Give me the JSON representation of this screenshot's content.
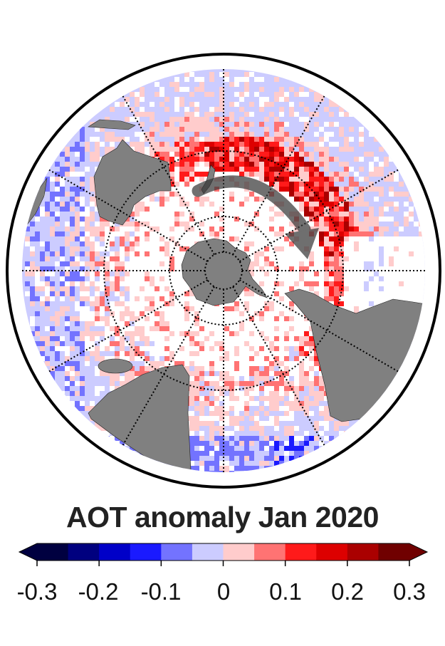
{
  "title": "AOT anomaly Jan 2020",
  "colorbar": {
    "ticks": [
      "-0.3",
      "-0.2",
      "-0.1",
      "0",
      "0.1",
      "0.2",
      "0.3"
    ],
    "tick_values": [
      -0.3,
      -0.2,
      -0.1,
      0,
      0.1,
      0.2,
      0.3
    ],
    "range": [
      -0.3,
      0.3
    ],
    "extend": "both",
    "colors": [
      "#000040",
      "#00007f",
      "#0000c8",
      "#1a1aff",
      "#7373ff",
      "#ccccff",
      "#ffcccc",
      "#ff7373",
      "#ff1a1a",
      "#dd0000",
      "#aa0000",
      "#700000"
    ]
  },
  "map": {
    "land_color": "#808080",
    "arrow_color": "#333333"
  }
}
